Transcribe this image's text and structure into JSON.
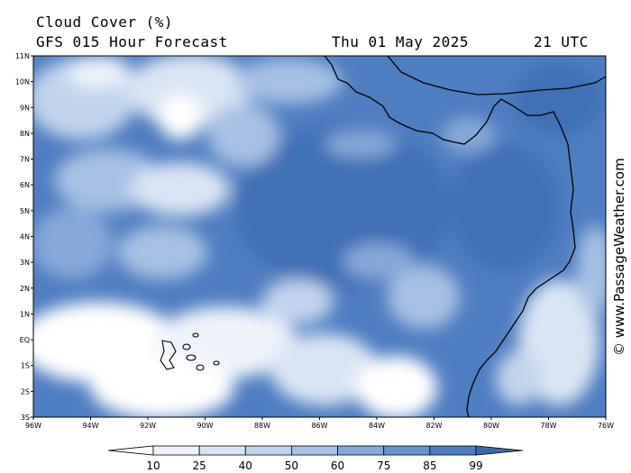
{
  "header": {
    "title": "Cloud Cover (%)",
    "subtitle": "GFS 015 Hour Forecast",
    "date": "Thu 01 May 2025",
    "time": "21 UTC"
  },
  "credit": "© www.PassageWeather.com",
  "map": {
    "lat_ticks": [
      "11N",
      "10N",
      "9N",
      "8N",
      "7N",
      "6N",
      "5N",
      "4N",
      "3N",
      "2N",
      "1N",
      "EQ",
      "1S",
      "2S",
      "3S"
    ],
    "lon_ticks": [
      "96W",
      "94W",
      "92W",
      "90W",
      "88W",
      "86W",
      "84W",
      "82W",
      "80W",
      "78W",
      "76W"
    ],
    "lat_range": [
      -3,
      11
    ],
    "lon_range": [
      -96,
      -76
    ]
  },
  "legend": {
    "values": [
      "10",
      "25",
      "40",
      "50",
      "60",
      "75",
      "85",
      "99"
    ],
    "colors": [
      "#ffffff",
      "#eef3fb",
      "#dae5f4",
      "#c2d4ed",
      "#a7c1e4",
      "#87a9d9",
      "#6a93cd",
      "#4f7dc1",
      "#3c69ae"
    ]
  }
}
